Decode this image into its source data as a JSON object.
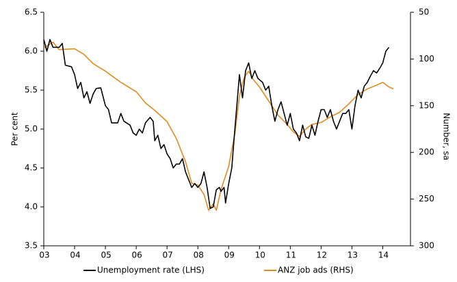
{
  "chart_data": {
    "type": "line",
    "ylabel": "Per cent",
    "y2label": "Number, sa",
    "xlim": [
      3,
      14.9
    ],
    "xticks": [
      {
        "value": 3,
        "label": "03"
      },
      {
        "value": 4,
        "label": "04"
      },
      {
        "value": 5,
        "label": "05"
      },
      {
        "value": 6,
        "label": "06"
      },
      {
        "value": 7,
        "label": "07"
      },
      {
        "value": 8,
        "label": "08"
      },
      {
        "value": 9,
        "label": "09"
      },
      {
        "value": 10,
        "label": "10"
      },
      {
        "value": 11,
        "label": "11"
      },
      {
        "value": 12,
        "label": "12"
      },
      {
        "value": 13,
        "label": "13"
      },
      {
        "value": 14,
        "label": "14"
      }
    ],
    "ylim": [
      3.5,
      6.5
    ],
    "yticks": [
      3.5,
      {
        "value": 4,
        "label": "4.0"
      },
      4.5,
      {
        "value": 5,
        "label": "5.0"
      },
      5.5,
      {
        "value": 6,
        "label": "6.0"
      },
      6.5
    ],
    "y2lim": [
      300,
      50
    ],
    "y2ticks": [
      50,
      100,
      150,
      200,
      250,
      300
    ],
    "legend": "bottom",
    "series": [
      {
        "name": "Unemployment rate (LHS)",
        "color": "#000000",
        "x": [
          3.0,
          3.1,
          3.2,
          3.3,
          3.5,
          3.6,
          3.7,
          3.9,
          4.0,
          4.1,
          4.2,
          4.3,
          4.4,
          4.5,
          4.6,
          4.7,
          4.85,
          5.0,
          5.1,
          5.2,
          5.4,
          5.5,
          5.6,
          5.8,
          5.9,
          6.0,
          6.1,
          6.2,
          6.3,
          6.45,
          6.55,
          6.6,
          6.7,
          6.8,
          6.9,
          7.0,
          7.1,
          7.2,
          7.3,
          7.4,
          7.5,
          7.6,
          7.7,
          7.8,
          7.9,
          8.0,
          8.1,
          8.2,
          8.3,
          8.4,
          8.5,
          8.6,
          8.7,
          8.75,
          8.85,
          8.9,
          9.0,
          9.1,
          9.2,
          9.35,
          9.45,
          9.55,
          9.65,
          9.75,
          9.85,
          9.95,
          10.1,
          10.2,
          10.3,
          10.4,
          10.5,
          10.6,
          10.7,
          10.8,
          10.9,
          11.0,
          11.1,
          11.2,
          11.3,
          11.4,
          11.5,
          11.6,
          11.7,
          11.8,
          11.9,
          12.0,
          12.1,
          12.2,
          12.3,
          12.4,
          12.5,
          12.6,
          12.7,
          12.8,
          12.9,
          13.0,
          13.1,
          13.2,
          13.3,
          13.4,
          13.5,
          13.6,
          13.7,
          13.8,
          13.9,
          14.0,
          14.1,
          14.2
        ],
        "values": [
          6.15,
          6.0,
          6.15,
          6.05,
          6.05,
          6.1,
          5.82,
          5.8,
          5.7,
          5.52,
          5.6,
          5.4,
          5.48,
          5.33,
          5.45,
          5.52,
          5.53,
          5.3,
          5.25,
          5.08,
          5.08,
          5.2,
          5.1,
          5.05,
          4.95,
          4.92,
          5.0,
          4.95,
          5.08,
          5.15,
          5.1,
          4.85,
          4.92,
          4.75,
          4.8,
          4.68,
          4.62,
          4.5,
          4.55,
          4.55,
          4.62,
          4.45,
          4.35,
          4.25,
          4.3,
          4.25,
          4.3,
          4.45,
          4.25,
          3.98,
          4.0,
          4.22,
          4.25,
          4.2,
          4.25,
          4.05,
          4.3,
          4.5,
          5.0,
          5.7,
          5.4,
          5.75,
          5.85,
          5.65,
          5.75,
          5.65,
          5.6,
          5.5,
          5.55,
          5.3,
          5.1,
          5.25,
          5.35,
          5.2,
          5.05,
          5.2,
          5.0,
          4.95,
          4.85,
          5.05,
          4.9,
          4.88,
          5.05,
          4.92,
          5.1,
          5.25,
          5.25,
          5.15,
          5.25,
          5.1,
          5.0,
          5.1,
          5.2,
          5.2,
          5.25,
          5.0,
          5.3,
          5.5,
          5.4,
          5.55,
          5.6,
          5.68,
          5.75,
          5.72,
          5.78,
          5.85,
          6.0,
          6.05
        ]
      },
      {
        "name": "ANZ job ads (RHS)",
        "color": "#e08a1e",
        "axis": "y2",
        "x": [
          3.0,
          3.3,
          3.5,
          4.0,
          4.3,
          4.6,
          5.0,
          5.5,
          6.0,
          6.3,
          6.6,
          7.0,
          7.3,
          7.6,
          7.8,
          8.0,
          8.2,
          8.35,
          8.5,
          8.6,
          8.75,
          9.0,
          9.2,
          9.35,
          9.5,
          9.65,
          9.8,
          10.0,
          10.3,
          10.6,
          10.9,
          11.1,
          11.3,
          11.5,
          11.7,
          12.0,
          12.3,
          12.6,
          12.9,
          13.2,
          13.5,
          13.8,
          14.0,
          14.2,
          14.35
        ],
        "values": [
          88,
          82,
          90,
          89,
          95,
          105,
          113,
          125,
          135,
          147,
          155,
          167,
          185,
          210,
          233,
          235,
          245,
          262,
          255,
          262,
          240,
          215,
          180,
          140,
          120,
          113,
          122,
          130,
          145,
          160,
          170,
          178,
          183,
          175,
          170,
          168,
          162,
          157,
          148,
          138,
          132,
          128,
          125,
          130,
          132
        ]
      }
    ]
  }
}
